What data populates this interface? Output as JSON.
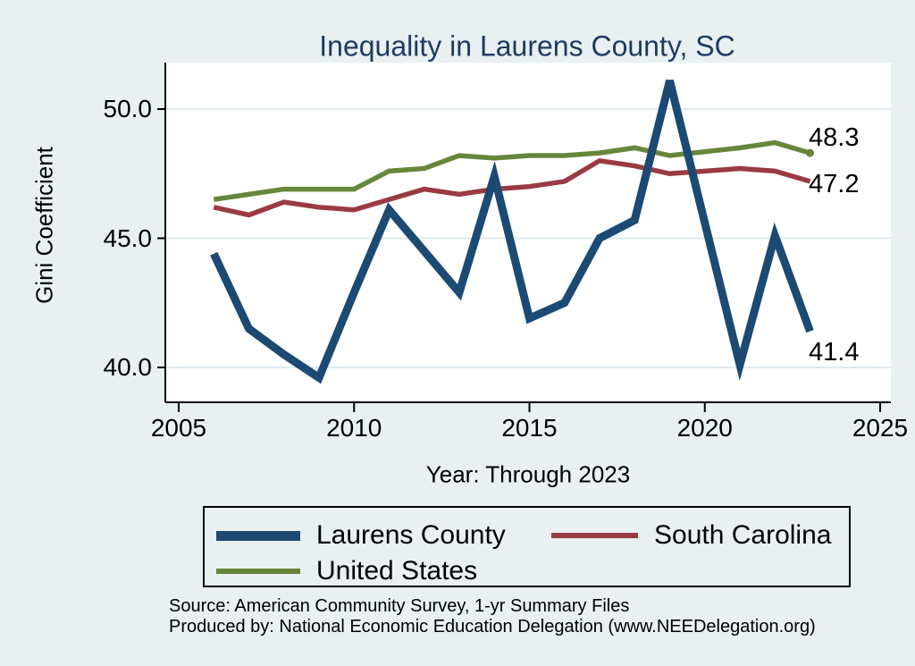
{
  "title": "Inequality in Laurens County, SC",
  "y_axis": {
    "label": "Gini Coefficient",
    "tick_labels": [
      "50.0",
      "45.0",
      "40.0"
    ],
    "tick_values": [
      50,
      45,
      40
    ]
  },
  "x_axis": {
    "label": "Year: Through 2023",
    "tick_labels": [
      "2005",
      "2010",
      "2015",
      "2020",
      "2025"
    ],
    "tick_values": [
      2005,
      2010,
      2015,
      2020,
      2025
    ]
  },
  "legend": {
    "items": [
      {
        "label": "Laurens County",
        "color": "#1c4a72",
        "swatch": "thick"
      },
      {
        "label": "South Carolina",
        "color": "#9a3b44",
        "swatch": "thin"
      },
      {
        "label": "United States",
        "color": "#68863a",
        "swatch": "thin"
      }
    ]
  },
  "source": {
    "line1": "Source: American Community Survey, 1-yr Summary Files",
    "line2": "Produced by: National Economic Education Delegation (www.NEEDelegation.org)"
  },
  "colors": {
    "background": "#e8f0f2",
    "plot_background": "#ffffff",
    "gridline": "#dfeaee",
    "axis": "#000000",
    "title_text": "#1e3c61"
  },
  "chart_data": {
    "type": "line",
    "title": "Inequality in Laurens County, SC",
    "xlabel": "Year: Through 2023",
    "ylabel": "Gini Coefficient",
    "xlim": [
      2005,
      2025
    ],
    "ylim": [
      38.7,
      51.8
    ],
    "grid": "horizontal",
    "legend_position": "bottom",
    "x": [
      2006,
      2007,
      2008,
      2009,
      2010,
      2011,
      2012,
      2013,
      2014,
      2015,
      2016,
      2017,
      2018,
      2019,
      2021,
      2022,
      2023
    ],
    "series": [
      {
        "name": "Laurens County",
        "color": "#1c4a72",
        "line_width": 9,
        "end_label": "41.4",
        "end_dot": false,
        "values": [
          44.4,
          41.5,
          40.5,
          39.6,
          42.9,
          46.1,
          44.5,
          42.9,
          47.4,
          41.9,
          42.5,
          45.0,
          45.7,
          51.1,
          40.1,
          45.1,
          41.4
        ]
      },
      {
        "name": "South Carolina",
        "color": "#9a3b44",
        "line_width": 5.5,
        "end_label": "47.2",
        "end_dot": false,
        "values": [
          46.2,
          45.9,
          46.4,
          46.2,
          46.1,
          46.5,
          46.9,
          46.7,
          46.9,
          47.0,
          47.2,
          48.0,
          47.8,
          47.5,
          47.7,
          47.6,
          47.2
        ]
      },
      {
        "name": "United States",
        "color": "#68863a",
        "line_width": 5.5,
        "end_label": "48.3",
        "end_dot": true,
        "values": [
          46.5,
          46.7,
          46.9,
          46.9,
          46.9,
          47.6,
          47.7,
          48.2,
          48.1,
          48.2,
          48.2,
          48.3,
          48.5,
          48.2,
          48.5,
          48.7,
          48.3
        ]
      }
    ]
  }
}
